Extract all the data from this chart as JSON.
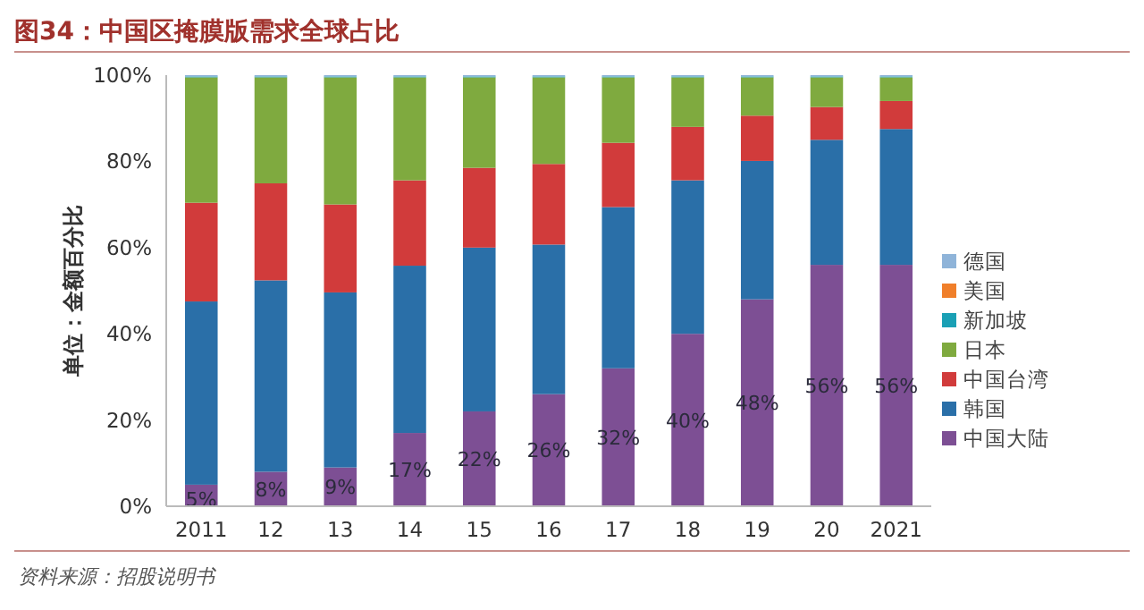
{
  "chart_data": {
    "type": "bar",
    "stacked": true,
    "title": "图34：中国区掩膜版需求全球占比",
    "ylabel": "单位：金额百分比",
    "categories": [
      "2011",
      "12",
      "13",
      "14",
      "15",
      "16",
      "17",
      "18",
      "19",
      "20",
      "2021"
    ],
    "series": [
      {
        "name": "中国大陆",
        "color": "#7d4f94",
        "values": [
          5,
          8,
          9,
          17,
          22,
          26,
          32,
          40,
          48,
          56,
          56
        ],
        "value_labels": [
          "5%",
          "8%",
          "9%",
          "17%",
          "22%",
          "26%",
          "32%",
          "40%",
          "48%",
          "56%",
          "56%"
        ]
      },
      {
        "name": "韩国",
        "color": "#2a6fa8",
        "values": [
          42.5,
          44.4,
          40.6,
          38.8,
          38,
          34.7,
          37.4,
          35.6,
          32.1,
          29,
          31.5
        ]
      },
      {
        "name": "中国台湾",
        "color": "#d13b3b",
        "values": [
          22.9,
          22.5,
          20.4,
          19.8,
          18.5,
          18.7,
          14.9,
          12.4,
          10.5,
          7.6,
          6.5
        ]
      },
      {
        "name": "日本",
        "color": "#7faa3f",
        "values": [
          29.1,
          24.6,
          29.5,
          23.9,
          21,
          20.1,
          15.2,
          11.5,
          8.9,
          6.9,
          5.5
        ]
      },
      {
        "name": "新加坡",
        "color": "#1aa0b5",
        "values": [
          0.2,
          0.2,
          0.2,
          0.2,
          0.2,
          0.2,
          0.2,
          0.2,
          0.2,
          0.2,
          0.2
        ]
      },
      {
        "name": "美国",
        "color": "#f07f2a",
        "values": [
          0,
          0,
          0,
          0,
          0,
          0,
          0,
          0,
          0,
          0,
          0
        ]
      },
      {
        "name": "德国",
        "color": "#8fb4d9",
        "values": [
          0.3,
          0.3,
          0.3,
          0.3,
          0.3,
          0.3,
          0.3,
          0.3,
          0.3,
          0.3,
          0.3
        ]
      }
    ],
    "ylim": [
      0,
      100
    ],
    "yticks": [
      {
        "value": 0,
        "label": "0%"
      },
      {
        "value": 20,
        "label": "20%"
      },
      {
        "value": 40,
        "label": "40%"
      },
      {
        "value": 60,
        "label": "60%"
      },
      {
        "value": 80,
        "label": "80%"
      },
      {
        "value": 100,
        "label": "100%"
      }
    ],
    "grid": false,
    "legend": "right",
    "annotations": [
      "资料来源：招股说明书"
    ]
  }
}
